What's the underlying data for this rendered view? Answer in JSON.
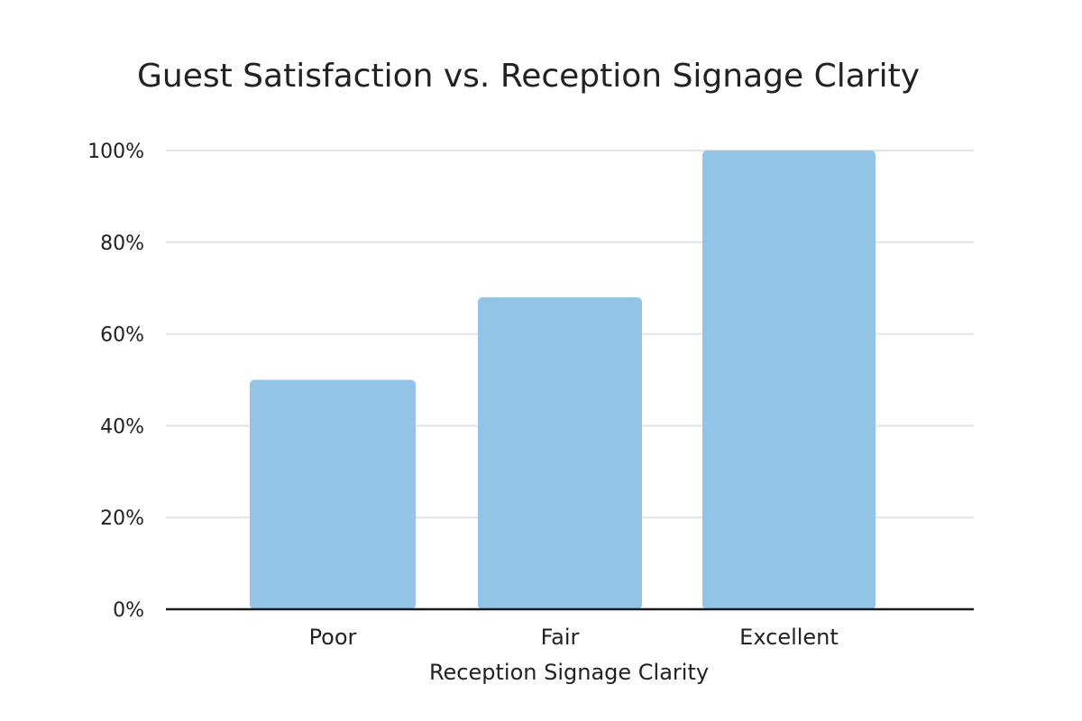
{
  "chart_data": {
    "type": "bar",
    "title": "Guest Satisfaction vs. Reception Signage Clarity",
    "xlabel": "Reception Signage Clarity",
    "ylabel": "",
    "categories": [
      "Poor",
      "Fair",
      "Excellent"
    ],
    "values": [
      50,
      68,
      100
    ],
    "ylim": [
      0,
      100
    ],
    "yticks": [
      0,
      20,
      40,
      60,
      80,
      100
    ],
    "ytick_labels": [
      "0%",
      "20%",
      "40%",
      "60%",
      "80%",
      "100%"
    ],
    "grid": true,
    "legend": "none",
    "bar_color": "#93c4e6"
  }
}
